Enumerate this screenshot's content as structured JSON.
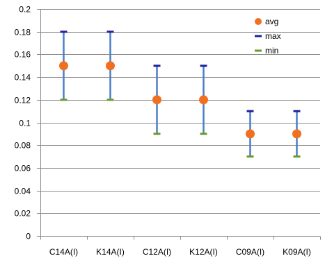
{
  "chart_data": {
    "type": "scatter",
    "title": "",
    "xlabel": "",
    "ylabel": "",
    "categories": [
      "C14A(I)",
      "K14A(I)",
      "C12A(I)",
      "K12A(I)",
      "C09A(I)",
      "K09A(I)"
    ],
    "ylim": [
      0,
      0.2
    ],
    "y_ticks": [
      "0",
      "0.02",
      "0.04",
      "0.06",
      "0.08",
      "0.1",
      "0.12",
      "0.14",
      "0.16",
      "0.18",
      "0.2"
    ],
    "grid": "horizontal",
    "legend_position": "top-right",
    "series": [
      {
        "name": "avg",
        "color": "#f07020",
        "marker": "circle",
        "values": [
          0.15,
          0.15,
          0.12,
          0.12,
          0.09,
          0.09
        ]
      },
      {
        "name": "max",
        "color": "#1f1fa0",
        "marker": "dash",
        "values": [
          0.18,
          0.18,
          0.15,
          0.15,
          0.11,
          0.11
        ]
      },
      {
        "name": "min",
        "color": "#6a9a2a",
        "marker": "dash",
        "values": [
          0.12,
          0.12,
          0.09,
          0.09,
          0.07,
          0.07
        ]
      }
    ],
    "error_bar_color": "#4a7ec8"
  }
}
